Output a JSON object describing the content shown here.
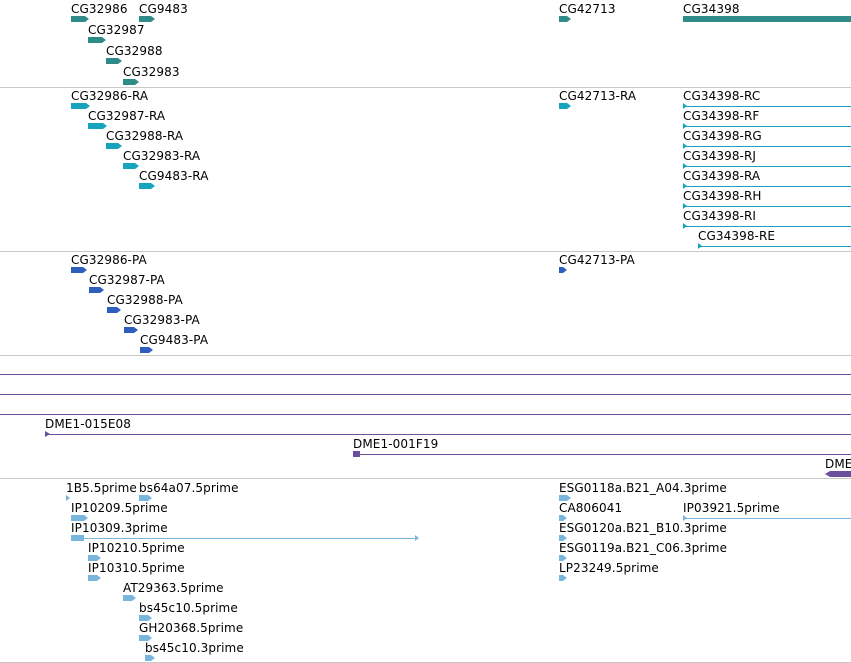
{
  "colors": {
    "gene": "#2e8b87",
    "mrna": "#16a3bd",
    "cds": "#2e5fbf",
    "clone": "#6a4f9c",
    "est": "#79b6dc",
    "separator": "#c8c8c8"
  },
  "tracks": {
    "genes": {
      "features": [
        {
          "label": "CG32986"
        },
        {
          "label": "CG9483"
        },
        {
          "label": "CG32987"
        },
        {
          "label": "CG32988"
        },
        {
          "label": "CG32983"
        },
        {
          "label": "CG42713"
        },
        {
          "label": "CG34398"
        }
      ]
    },
    "transcripts": {
      "features": [
        {
          "label": "CG32986-RA"
        },
        {
          "label": "CG32987-RA"
        },
        {
          "label": "CG32988-RA"
        },
        {
          "label": "CG32983-RA"
        },
        {
          "label": "CG9483-RA"
        },
        {
          "label": "CG42713-RA"
        },
        {
          "label": "CG34398-RC"
        },
        {
          "label": "CG34398-RF"
        },
        {
          "label": "CG34398-RG"
        },
        {
          "label": "CG34398-RJ"
        },
        {
          "label": "CG34398-RA"
        },
        {
          "label": "CG34398-RH"
        },
        {
          "label": "CG34398-RI"
        },
        {
          "label": "CG34398-RE"
        }
      ]
    },
    "proteins": {
      "features": [
        {
          "label": "CG32986-PA"
        },
        {
          "label": "CG32987-PA"
        },
        {
          "label": "CG32988-PA"
        },
        {
          "label": "CG32983-PA"
        },
        {
          "label": "CG9483-PA"
        },
        {
          "label": "CG42713-PA"
        }
      ]
    },
    "clones": {
      "features": [
        {
          "label": "DME1-015E08"
        },
        {
          "label": "DME1-001F19"
        },
        {
          "label": "DME"
        }
      ]
    },
    "ests": {
      "features": [
        {
          "label": "1B5.5prime"
        },
        {
          "label": "bs64a07.5prime"
        },
        {
          "label": "IP10209.5prime"
        },
        {
          "label": "IP10309.3prime"
        },
        {
          "label": "IP10210.5prime"
        },
        {
          "label": "IP10310.5prime"
        },
        {
          "label": "AT29363.5prime"
        },
        {
          "label": "bs45c10.5prime"
        },
        {
          "label": "GH20368.5prime"
        },
        {
          "label": "bs45c10.3prime"
        },
        {
          "label": "ESG0118a.B21_A04.3prime"
        },
        {
          "label": "CA806041"
        },
        {
          "label": "IP03921.5prime"
        },
        {
          "label": "ESG0120a.B21_B10.3prime"
        },
        {
          "label": "ESG0119a.B21_C06.3prime"
        },
        {
          "label": "LP23249.5prime"
        }
      ]
    }
  }
}
